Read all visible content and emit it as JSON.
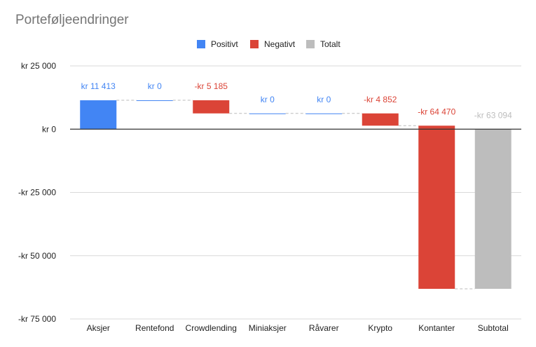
{
  "chart_data": {
    "type": "waterfall",
    "title": "Porteføljeendringer",
    "categories": [
      "Aksjer",
      "Rentefond",
      "Crowdlending",
      "Miniaksjer",
      "Råvarer",
      "Krypto",
      "Kontanter",
      "Subtotal"
    ],
    "values": [
      11413,
      0,
      -5185,
      0,
      0,
      -4852,
      -64470,
      -63094
    ],
    "value_labels": [
      "kr  11 413",
      "kr   0",
      "-kr  5 185",
      "kr   0",
      "kr   0",
      "-kr  4 852",
      "-kr  64 470",
      "-kr  63 094"
    ],
    "kinds": [
      "positive",
      "positive",
      "negative",
      "positive",
      "positive",
      "negative",
      "negative",
      "total"
    ],
    "ylim": [
      -75000,
      25000
    ],
    "yticks": [
      25000,
      0,
      -25000,
      -50000,
      -75000
    ],
    "ytick_labels": [
      "kr  25 000",
      "kr   0",
      "-kr  25 000",
      "-kr  50 000",
      "-kr  75 000"
    ],
    "grid": true,
    "legend_position": "top",
    "legend": [
      {
        "key": "positive",
        "label": "Positivt",
        "color": "#4285f4"
      },
      {
        "key": "negative",
        "label": "Negativt",
        "color": "#db4437"
      },
      {
        "key": "total",
        "label": "Totalt",
        "color": "#bdbdbd"
      }
    ],
    "colors": {
      "positive": "#4285f4",
      "negative": "#db4437",
      "total": "#bdbdbd",
      "grid": "#d9d9d9",
      "zero_line": "#333333",
      "connector": "#bbbbbb",
      "axis_text": "#222222"
    }
  }
}
